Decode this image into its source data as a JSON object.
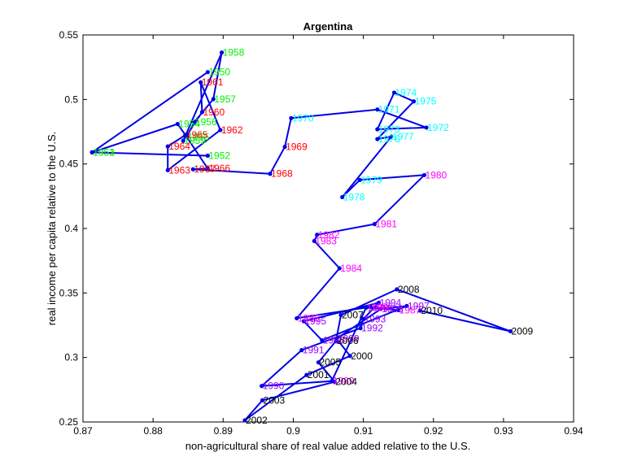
{
  "chart_data": {
    "type": "line",
    "title": "Argentina",
    "xlabel": "non-agricultural share of real value added relative to the U.S.",
    "ylabel": "real income per capita relative to the U.S.",
    "xlim": [
      0.87,
      0.94
    ],
    "ylim": [
      0.25,
      0.55
    ],
    "xticks": [
      "0.87",
      "0.88",
      "0.89",
      "0.9",
      "0.91",
      "0.92",
      "0.93",
      "0.94"
    ],
    "yticks": [
      "0.25",
      "0.3",
      "0.35",
      "0.4",
      "0.45",
      "0.5",
      "0.55"
    ],
    "grid": false,
    "line_color": "#0000e6",
    "period_colors": {
      "1950s": "#00ee00",
      "1960s": "#ff0000",
      "1970s": "#00ffff",
      "1980s": "#ff00ff",
      "1990s": "#9900ff",
      "2000s": "#000000"
    },
    "points": [
      {
        "year": "1950",
        "x": 0.8878,
        "y": 0.5212,
        "color": "#00ee00"
      },
      {
        "year": "1951",
        "x": 0.8713,
        "y": 0.459,
        "color": "#00ee00"
      },
      {
        "year": "1952",
        "x": 0.8878,
        "y": 0.4564,
        "color": "#00ee00"
      },
      {
        "year": "1953",
        "x": 0.8713,
        "y": 0.459,
        "color": "#00ee00"
      },
      {
        "year": "1954",
        "x": 0.8835,
        "y": 0.481,
        "color": "#00ee00"
      },
      {
        "year": "1955",
        "x": 0.8848,
        "y": 0.471,
        "color": "#00ee00"
      },
      {
        "year": "1956",
        "x": 0.8859,
        "y": 0.4826,
        "color": "#00ee00"
      },
      {
        "year": "1957",
        "x": 0.8886,
        "y": 0.5003,
        "color": "#00ee00"
      },
      {
        "year": "1958",
        "x": 0.8898,
        "y": 0.5364,
        "color": "#00ee00"
      },
      {
        "year": "1959",
        "x": 0.8843,
        "y": 0.468,
        "color": "#00ee00"
      },
      {
        "year": "1960",
        "x": 0.887,
        "y": 0.4902,
        "color": "#ff0000"
      },
      {
        "year": "1961",
        "x": 0.8868,
        "y": 0.5133,
        "color": "#ff0000"
      },
      {
        "year": "1962",
        "x": 0.8896,
        "y": 0.4763,
        "color": "#ff0000"
      },
      {
        "year": "1963",
        "x": 0.8821,
        "y": 0.4452,
        "color": "#ff0000"
      },
      {
        "year": "1964",
        "x": 0.8821,
        "y": 0.4636,
        "color": "#ff0000"
      },
      {
        "year": "1965",
        "x": 0.8846,
        "y": 0.4724,
        "color": "#ff0000"
      },
      {
        "year": "1966",
        "x": 0.8878,
        "y": 0.4465,
        "color": "#ff0000"
      },
      {
        "year": "1967",
        "x": 0.8857,
        "y": 0.4459,
        "color": "#ff0000"
      },
      {
        "year": "1968",
        "x": 0.8967,
        "y": 0.4424,
        "color": "#ff0000"
      },
      {
        "year": "1969",
        "x": 0.8988,
        "y": 0.4633,
        "color": "#ff0000"
      },
      {
        "year": "1970",
        "x": 0.8997,
        "y": 0.4855,
        "color": "#00ffff"
      },
      {
        "year": "1971",
        "x": 0.912,
        "y": 0.4922,
        "color": "#00ffff"
      },
      {
        "year": "1972",
        "x": 0.919,
        "y": 0.4782,
        "color": "#00ffff"
      },
      {
        "year": "1973",
        "x": 0.912,
        "y": 0.4769,
        "color": "#00ffff"
      },
      {
        "year": "1974",
        "x": 0.9144,
        "y": 0.5053,
        "color": "#00ffff"
      },
      {
        "year": "1975",
        "x": 0.9172,
        "y": 0.4985,
        "color": "#00ffff"
      },
      {
        "year": "1976",
        "x": 0.912,
        "y": 0.4693,
        "color": "#00ffff"
      },
      {
        "year": "1977",
        "x": 0.914,
        "y": 0.4712,
        "color": "#00ffff"
      },
      {
        "year": "1978",
        "x": 0.907,
        "y": 0.4243,
        "color": "#00ffff"
      },
      {
        "year": "1979",
        "x": 0.9095,
        "y": 0.4376,
        "color": "#00ffff"
      },
      {
        "year": "1980",
        "x": 0.9187,
        "y": 0.4414,
        "color": "#ff00ff"
      },
      {
        "year": "1981",
        "x": 0.9116,
        "y": 0.4034,
        "color": "#ff00ff"
      },
      {
        "year": "1982",
        "x": 0.9034,
        "y": 0.3951,
        "color": "#ff00ff"
      },
      {
        "year": "1983",
        "x": 0.903,
        "y": 0.3903,
        "color": "#ff00ff"
      },
      {
        "year": "1984",
        "x": 0.9066,
        "y": 0.3691,
        "color": "#ff00ff"
      },
      {
        "year": "1985",
        "x": 0.9005,
        "y": 0.3304,
        "color": "#ff00ff"
      },
      {
        "year": "1986",
        "x": 0.911,
        "y": 0.3392,
        "color": "#ff00ff"
      },
      {
        "year": "1987",
        "x": 0.915,
        "y": 0.3367,
        "color": "#ff00ff"
      },
      {
        "year": "1988",
        "x": 0.9104,
        "y": 0.3386,
        "color": "#ff00ff"
      },
      {
        "year": "1989",
        "x": 0.9055,
        "y": 0.2817,
        "color": "#ff00ff"
      },
      {
        "year": "1990",
        "x": 0.8955,
        "y": 0.2779,
        "color": "#9900ff"
      },
      {
        "year": "1991",
        "x": 0.9012,
        "y": 0.3057,
        "color": "#9900ff"
      },
      {
        "year": "1992",
        "x": 0.9096,
        "y": 0.3227,
        "color": "#9900ff"
      },
      {
        "year": "1993",
        "x": 0.91,
        "y": 0.3298,
        "color": "#9900ff"
      },
      {
        "year": "1994",
        "x": 0.9122,
        "y": 0.3424,
        "color": "#9900ff"
      },
      {
        "year": "1995",
        "x": 0.9015,
        "y": 0.3281,
        "color": "#9900ff"
      },
      {
        "year": "1996",
        "x": 0.9041,
        "y": 0.3133,
        "color": "#9900ff"
      },
      {
        "year": "1997",
        "x": 0.9162,
        "y": 0.3399,
        "color": "#9900ff"
      },
      {
        "year": "1998",
        "x": 0.9125,
        "y": 0.3376,
        "color": "#9900ff"
      },
      {
        "year": "1999",
        "x": 0.9062,
        "y": 0.3146,
        "color": "#9900ff"
      },
      {
        "year": "2000",
        "x": 0.9081,
        "y": 0.3012,
        "color": "#000000"
      },
      {
        "year": "2001",
        "x": 0.9019,
        "y": 0.2864,
        "color": "#000000"
      },
      {
        "year": "2002",
        "x": 0.8931,
        "y": 0.2513,
        "color": "#000000"
      },
      {
        "year": "2003",
        "x": 0.8956,
        "y": 0.2668,
        "color": "#000000"
      },
      {
        "year": "2004",
        "x": 0.9059,
        "y": 0.2811,
        "color": "#000000"
      },
      {
        "year": "2005",
        "x": 0.9036,
        "y": 0.2962,
        "color": "#000000"
      },
      {
        "year": "2006",
        "x": 0.9061,
        "y": 0.3129,
        "color": "#000000"
      },
      {
        "year": "2007",
        "x": 0.9068,
        "y": 0.3329,
        "color": "#000000"
      },
      {
        "year": "2008",
        "x": 0.9148,
        "y": 0.3528,
        "color": "#000000"
      },
      {
        "year": "2009",
        "x": 0.931,
        "y": 0.3203,
        "color": "#000000"
      },
      {
        "year": "2010",
        "x": 0.9181,
        "y": 0.3363,
        "color": "#000000"
      }
    ]
  }
}
